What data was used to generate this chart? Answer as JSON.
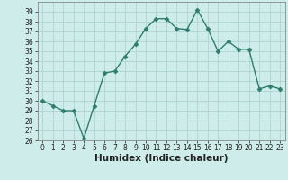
{
  "x": [
    0,
    1,
    2,
    3,
    4,
    5,
    6,
    7,
    8,
    9,
    10,
    11,
    12,
    13,
    14,
    15,
    16,
    17,
    18,
    19,
    20,
    21,
    22,
    23
  ],
  "y": [
    30,
    29.5,
    29,
    29,
    26.2,
    29.5,
    32.8,
    33,
    34.5,
    35.7,
    37.3,
    38.3,
    38.3,
    37.3,
    37.2,
    39.2,
    37.3,
    35,
    36,
    35.2,
    35.2,
    31.2,
    31.5,
    31.2
  ],
  "line_color": "#2e7d6e",
  "marker": "D",
  "marker_size": 2.5,
  "bg_color": "#ceecea",
  "grid_color": "#aed4d0",
  "xlabel": "Humidex (Indice chaleur)",
  "ylim": [
    26,
    40
  ],
  "xlim": [
    -0.5,
    23.5
  ],
  "yticks": [
    26,
    27,
    28,
    29,
    30,
    31,
    32,
    33,
    34,
    35,
    36,
    37,
    38,
    39
  ],
  "xticks": [
    0,
    1,
    2,
    3,
    4,
    5,
    6,
    7,
    8,
    9,
    10,
    11,
    12,
    13,
    14,
    15,
    16,
    17,
    18,
    19,
    20,
    21,
    22,
    23
  ],
  "tick_fontsize": 5.5,
  "label_fontsize": 7.5,
  "line_width": 1.0
}
